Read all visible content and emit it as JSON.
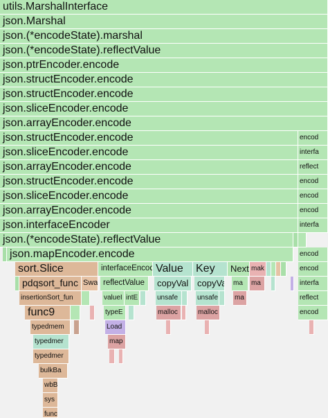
{
  "flamegraph": {
    "frames": [
      {
        "label": "utils.MarshalInterface"
      },
      {
        "label": "json.Marshal"
      },
      {
        "label": "json.(*encodeState).marshal"
      },
      {
        "label": "json.(*encodeState).reflectValue"
      },
      {
        "label": "json.ptrEncoder.encode"
      },
      {
        "label": "json.structEncoder.encode"
      },
      {
        "label": "json.structEncoder.encode"
      },
      {
        "label": "json.sliceEncoder.encode"
      },
      {
        "label": "json.arrayEncoder.encode"
      },
      {
        "label": "json.structEncoder.encode"
      },
      {
        "label": "encod"
      },
      {
        "label": "json.sliceEncoder.encode"
      },
      {
        "label": "interfa"
      },
      {
        "label": "json.arrayEncoder.encode"
      },
      {
        "label": "reflect"
      },
      {
        "label": "json.structEncoder.encode"
      },
      {
        "label": "encod"
      },
      {
        "label": "json.sliceEncoder.encode"
      },
      {
        "label": "encod"
      },
      {
        "label": "json.arrayEncoder.encode"
      },
      {
        "label": "encod"
      },
      {
        "label": "json.interfaceEncoder"
      },
      {
        "label": "interfa"
      },
      {
        "label": "json.(*encodeState).reflectValue"
      },
      {
        "label": "json.mapEncoder.encode"
      },
      {
        "label": "encod"
      },
      {
        "label": "sort.Slice"
      },
      {
        "label": "interfaceEncod"
      },
      {
        "label": "Value"
      },
      {
        "label": "Key"
      },
      {
        "label": "Next"
      },
      {
        "label": "mak"
      },
      {
        "label": "encod"
      },
      {
        "label": "pdqsort_func"
      },
      {
        "label": "Swa"
      },
      {
        "label": "reflectValue"
      },
      {
        "label": "copyVal"
      },
      {
        "label": "copyVal"
      },
      {
        "label": "ma"
      },
      {
        "label": "ma"
      },
      {
        "label": "interfa"
      },
      {
        "label": "insertionSort_fun"
      },
      {
        "label": "valueI"
      },
      {
        "label": "intE"
      },
      {
        "label": "unsafe"
      },
      {
        "label": "unsafe"
      },
      {
        "label": "ma"
      },
      {
        "label": "reflect"
      },
      {
        "label": "func9"
      },
      {
        "label": "typeE"
      },
      {
        "label": "malloc"
      },
      {
        "label": "malloc"
      },
      {
        "label": "encod"
      },
      {
        "label": "typedmem"
      },
      {
        "label": "Load"
      },
      {
        "label": "typedmer"
      },
      {
        "label": "map"
      },
      {
        "label": "typedmer"
      },
      {
        "label": "bulkBa"
      },
      {
        "label": "wbB"
      },
      {
        "label": "sys"
      },
      {
        "label": "func"
      },
      {
        "label": ""
      }
    ]
  }
}
